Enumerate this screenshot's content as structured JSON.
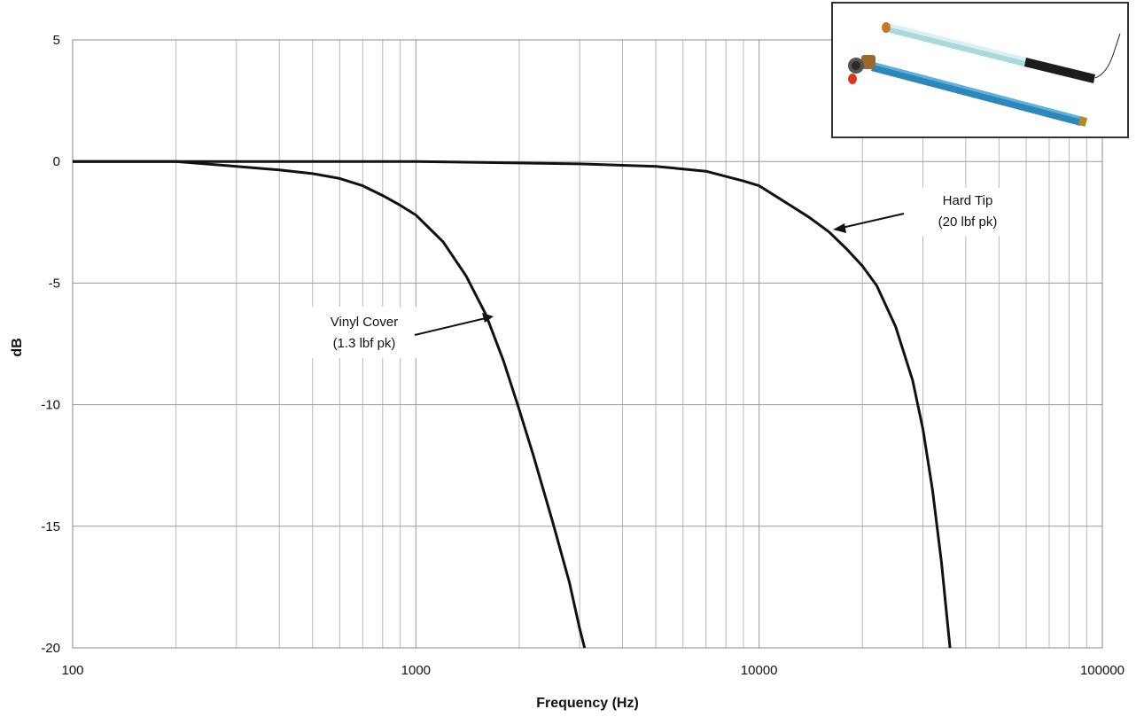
{
  "chart_data": {
    "type": "line",
    "title": "",
    "xlabel": "Frequency (Hz)",
    "ylabel": "dB",
    "x_scale": "log",
    "xlim": [
      100,
      100000
    ],
    "ylim": [
      -20,
      5
    ],
    "grid": true,
    "x_ticks": [
      100,
      1000,
      10000,
      100000
    ],
    "x_tick_labels": [
      "100",
      "1000",
      "10000",
      "100000"
    ],
    "y_ticks": [
      5,
      0,
      -5,
      -10,
      -15,
      -20
    ],
    "y_tick_labels": [
      "5",
      "0",
      "-5",
      "-10",
      "-15",
      "-20"
    ],
    "series": [
      {
        "name": "Vinyl Cover (1.3 lbf pk)",
        "color": "#111111",
        "x": [
          100,
          200,
          300,
          400,
          500,
          600,
          700,
          800,
          900,
          1000,
          1200,
          1400,
          1600,
          1800,
          2000,
          2200,
          2500,
          2800,
          3000,
          3100
        ],
        "y": [
          0,
          0,
          -0.2,
          -0.35,
          -0.5,
          -0.7,
          -1.0,
          -1.4,
          -1.8,
          -2.2,
          -3.3,
          -4.7,
          -6.3,
          -8.2,
          -10.2,
          -12.1,
          -14.8,
          -17.3,
          -19.2,
          -20
        ]
      },
      {
        "name": "Hard Tip (20 lbf pk)",
        "color": "#111111",
        "x": [
          100,
          1000,
          3000,
          5000,
          7000,
          9000,
          10000,
          12000,
          14000,
          16000,
          18000,
          20000,
          22000,
          25000,
          28000,
          30000,
          32000,
          34000,
          35000,
          36000
        ],
        "y": [
          0,
          0,
          -0.1,
          -0.2,
          -0.4,
          -0.8,
          -1.0,
          -1.7,
          -2.3,
          -2.9,
          -3.6,
          -4.3,
          -5.1,
          -6.8,
          -9.0,
          -11.0,
          -13.5,
          -16.5,
          -18.3,
          -20
        ]
      }
    ],
    "annotations": [
      {
        "line1": "Vinyl Cover",
        "line2": "(1.3 lbf pk)"
      },
      {
        "line1": "Hard Tip",
        "line2": "(20 lbf pk)"
      }
    ]
  },
  "inset": {
    "description_icon": "photo-of-impact-hammer-tips"
  }
}
